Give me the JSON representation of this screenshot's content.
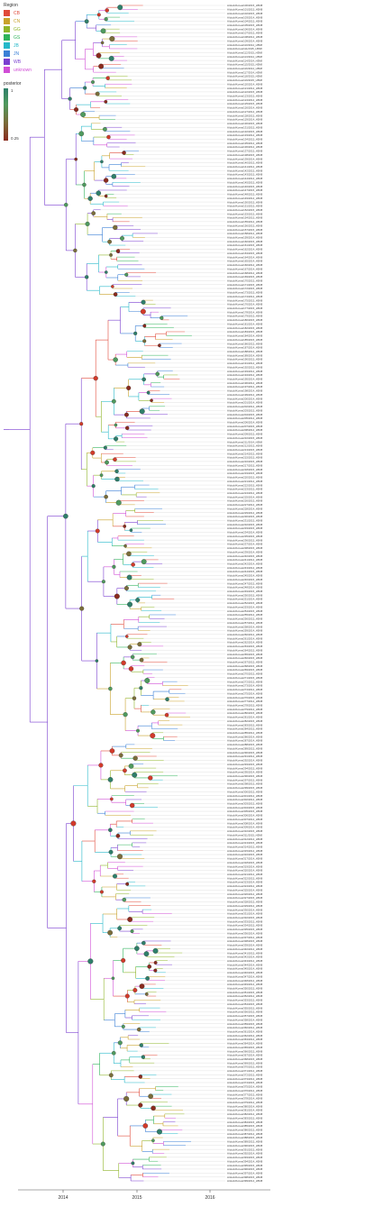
{
  "legend": {
    "title": "Region",
    "items": [
      {
        "label": "CB",
        "color": "#e04a3a"
      },
      {
        "label": "CN",
        "color": "#c9a22b"
      },
      {
        "label": "GG",
        "color": "#8fb52a"
      },
      {
        "label": "GS",
        "color": "#2fb35a"
      },
      {
        "label": "JB",
        "color": "#25b8c9"
      },
      {
        "label": "JN",
        "color": "#3a7fd6"
      },
      {
        "label": "WB",
        "color": "#7a3fd0"
      },
      {
        "label": "unknown",
        "color": "#d04ed6"
      }
    ]
  },
  "posterior": {
    "title": "posterior",
    "max_label": "1",
    "min_label": "0.25"
  },
  "axis": {
    "ticks": [
      "2014",
      "2015",
      "2016"
    ]
  },
  "taxa_label_prefix": "A/duck/Korea/",
  "taxa_label_suffix": "/2014_H5N8",
  "tip_count": 300
}
